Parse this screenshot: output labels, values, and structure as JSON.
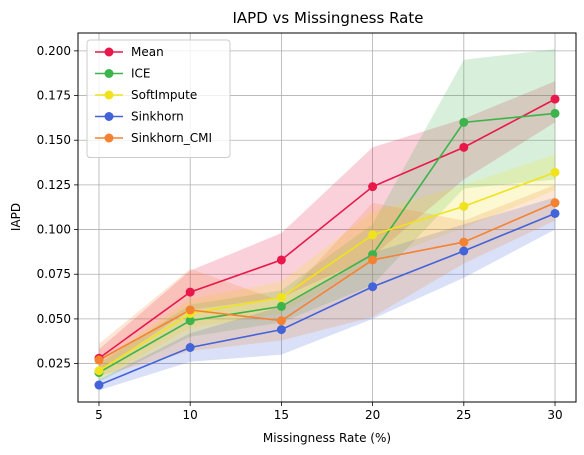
{
  "chart_data": {
    "type": "line",
    "title": "IAPD vs Missingness Rate",
    "xlabel": "Missingness Rate (%)",
    "ylabel": "IAPD",
    "x": [
      5,
      10,
      15,
      20,
      25,
      30
    ],
    "xlim": [
      3.85,
      31.15
    ],
    "ylim": [
      0.0035,
      0.21
    ],
    "xticks": [
      5,
      10,
      15,
      20,
      25,
      30
    ],
    "xtick_labels": [
      "5",
      "10",
      "15",
      "20",
      "25",
      "30"
    ],
    "yticks": [
      0.025,
      0.05,
      0.075,
      0.1,
      0.125,
      0.15,
      0.175,
      0.2
    ],
    "ytick_labels": [
      "0.025",
      "0.050",
      "0.075",
      "0.100",
      "0.125",
      "0.150",
      "0.175",
      "0.200"
    ],
    "grid": true,
    "legend_position": "top-left",
    "series": [
      {
        "name": "Mean",
        "color": "#e8194a",
        "values": [
          0.028,
          0.065,
          0.083,
          0.124,
          0.146,
          0.173
        ],
        "band_upper": [
          0.033,
          0.077,
          0.098,
          0.146,
          0.162,
          0.183
        ],
        "band_lower": [
          0.021,
          0.055,
          0.062,
          0.085,
          0.128,
          0.16
        ]
      },
      {
        "name": "ICE",
        "color": "#3cb44b",
        "values": [
          0.02,
          0.049,
          0.057,
          0.086,
          0.16,
          0.165
        ],
        "band_upper": [
          0.025,
          0.058,
          0.066,
          0.103,
          0.195,
          0.201
        ],
        "band_lower": [
          0.015,
          0.04,
          0.048,
          0.069,
          0.123,
          0.128
        ]
      },
      {
        "name": "SoftImpute",
        "color": "#f0e31c",
        "values": [
          0.021,
          0.053,
          0.062,
          0.097,
          0.113,
          0.132
        ],
        "band_upper": [
          0.026,
          0.061,
          0.071,
          0.11,
          0.125,
          0.142
        ],
        "band_lower": [
          0.016,
          0.045,
          0.053,
          0.082,
          0.101,
          0.122
        ]
      },
      {
        "name": "Sinkhorn",
        "color": "#4363d8",
        "values": [
          0.013,
          0.034,
          0.044,
          0.068,
          0.088,
          0.109
        ],
        "band_upper": [
          0.016,
          0.042,
          0.057,
          0.087,
          0.103,
          0.118
        ],
        "band_lower": [
          0.01,
          0.026,
          0.03,
          0.05,
          0.073,
          0.1
        ]
      },
      {
        "name": "Sinkhorn_CMI",
        "color": "#f58231",
        "values": [
          0.027,
          0.055,
          0.049,
          0.083,
          0.093,
          0.115
        ],
        "band_upper": [
          0.036,
          0.078,
          0.06,
          0.115,
          0.105,
          0.125
        ],
        "band_lower": [
          0.018,
          0.032,
          0.038,
          0.051,
          0.081,
          0.105
        ]
      }
    ]
  }
}
